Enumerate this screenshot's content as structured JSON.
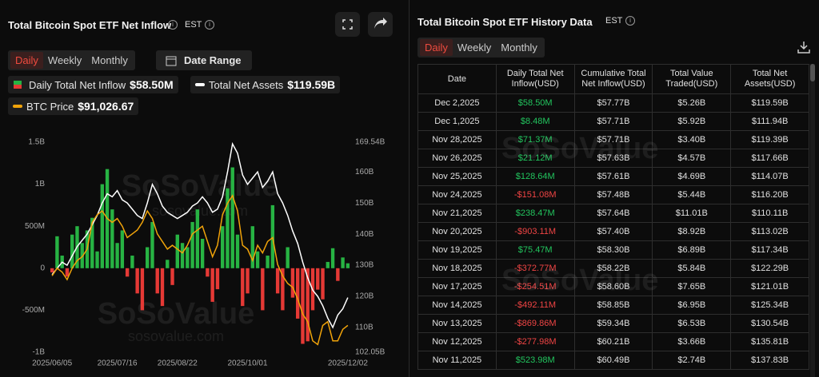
{
  "left_panel": {
    "title": "Total Bitcoin Spot ETF Net Inflow",
    "timezone": "EST",
    "tabs": [
      "Daily",
      "Weekly",
      "Monthly"
    ],
    "active_tab": 0,
    "date_range": "Date Range"
  },
  "watermark": {
    "brand": "SoSoValue",
    "site": "sosovalue.com"
  },
  "chart_data": {
    "type": "combo",
    "categories": [
      "2025/06/05",
      null,
      null,
      null,
      null,
      null,
      null,
      null,
      null,
      null,
      null,
      null,
      null,
      "2025/07/16",
      null,
      null,
      null,
      null,
      null,
      null,
      null,
      null,
      null,
      null,
      null,
      "2025/08/22",
      null,
      null,
      null,
      null,
      null,
      null,
      null,
      null,
      null,
      null,
      null,
      null,
      null,
      "2025/10/01",
      null,
      null,
      null,
      null,
      null,
      null,
      null,
      null,
      null,
      null,
      null,
      null,
      null,
      null,
      null,
      null,
      null,
      null,
      null,
      "2025/12/02"
    ],
    "ylim": [
      -1000,
      1500
    ],
    "yticks": [
      {
        "value": -1000,
        "label": "-1B"
      },
      {
        "value": -500,
        "label": "-500M"
      },
      0,
      {
        "value": 500,
        "label": "500M"
      },
      {
        "value": 1000,
        "label": "1B"
      },
      {
        "value": 1500,
        "label": "1.5B"
      }
    ],
    "y2lim": [
      102.05,
      169.54
    ],
    "y2ticks": [
      {
        "value": 102.05,
        "label": "102.05B"
      },
      {
        "value": 110,
        "label": "110B"
      },
      {
        "value": 120,
        "label": "120B"
      },
      {
        "value": 130,
        "label": "130B"
      },
      {
        "value": 140,
        "label": "140B"
      },
      {
        "value": 150,
        "label": "150B"
      },
      {
        "value": 160,
        "label": "160B"
      },
      {
        "value": 169.54,
        "label": "169.54B"
      }
    ],
    "y3lim": [
      84000,
      139000
    ],
    "grid": false,
    "series": [
      {
        "name": "Daily Total Net Inflow",
        "type": "bar",
        "color": "#27b343",
        "negative_color": "#e53935",
        "latest": "$58.50M",
        "values": [
          -50,
          380,
          150,
          -100,
          400,
          500,
          300,
          450,
          600,
          200,
          1000,
          1180,
          700,
          300,
          450,
          -100,
          150,
          -300,
          -500,
          250,
          550,
          -300,
          -450,
          100,
          -200,
          400,
          300,
          250,
          550,
          700,
          350,
          -100,
          -400,
          -250,
          500,
          950,
          1200,
          400,
          -450,
          -300,
          500,
          200,
          -500,
          150,
          750,
          -300,
          -500,
          250,
          -350,
          -600,
          -900,
          -870,
          -500,
          -255,
          -370,
          75,
          238,
          -151,
          128,
          58.5
        ]
      },
      {
        "name": "Total Net Assets",
        "type": "line",
        "color": "#ffffff",
        "axis": "y2",
        "latest": "$119.59B",
        "values": [
          127,
          129,
          131,
          130,
          133,
          136,
          138,
          140,
          143,
          146,
          150,
          153,
          152,
          154,
          151,
          150,
          148,
          146,
          145,
          150,
          156,
          153,
          149,
          147,
          146,
          145,
          146,
          147,
          149,
          150,
          152,
          150,
          147,
          148,
          152,
          160,
          169,
          166,
          159,
          156,
          158,
          160,
          155,
          157,
          160,
          153,
          150,
          146,
          141,
          137,
          131,
          126,
          122,
          120,
          117,
          113,
          110,
          114,
          116,
          119.59
        ]
      },
      {
        "name": "BTC Price",
        "type": "line",
        "color": "#f0a30a",
        "axis": "y3",
        "latest": "$91,026.67",
        "values": [
          104000,
          106000,
          105000,
          103000,
          106000,
          108000,
          109000,
          111000,
          118000,
          120000,
          121000,
          119000,
          118000,
          119000,
          117000,
          114000,
          115000,
          116000,
          118000,
          121000,
          119000,
          115000,
          113000,
          111000,
          112000,
          111000,
          110000,
          112000,
          115000,
          116000,
          117000,
          113000,
          109000,
          112000,
          120000,
          123000,
          125000,
          121000,
          112000,
          111000,
          108000,
          112000,
          110000,
          113000,
          114000,
          107000,
          104000,
          102000,
          101000,
          98000,
          94000,
          92000,
          87000,
          86000,
          91000,
          92000,
          87000,
          87000,
          90000,
          91026.67
        ]
      }
    ]
  },
  "right_panel": {
    "title": "Total Bitcoin Spot ETF History Data",
    "timezone": "EST",
    "tabs": [
      "Daily",
      "Weekly",
      "Monthly"
    ],
    "active_tab": 0,
    "table": {
      "columns": [
        "Date",
        "Daily Total Net Inflow(USD)",
        "Cumulative Total Net Inflow(USD)",
        "Total Value Traded(USD)",
        "Total Net Assets(USD)"
      ],
      "rows": [
        [
          "Dec 2,2025",
          "$58.50M",
          "$57.77B",
          "$5.26B",
          "$119.59B"
        ],
        [
          "Dec 1,2025",
          "$8.48M",
          "$57.71B",
          "$5.92B",
          "$111.94B"
        ],
        [
          "Nov 28,2025",
          "$71.37M",
          "$57.71B",
          "$3.40B",
          "$119.39B"
        ],
        [
          "Nov 26,2025",
          "$21.12M",
          "$57.63B",
          "$4.57B",
          "$117.66B"
        ],
        [
          "Nov 25,2025",
          "$128.64M",
          "$57.61B",
          "$4.69B",
          "$114.07B"
        ],
        [
          "Nov 24,2025",
          "-$151.08M",
          "$57.48B",
          "$5.44B",
          "$116.20B"
        ],
        [
          "Nov 21,2025",
          "$238.47M",
          "$57.64B",
          "$11.01B",
          "$110.11B"
        ],
        [
          "Nov 20,2025",
          "-$903.11M",
          "$57.40B",
          "$8.92B",
          "$113.02B"
        ],
        [
          "Nov 19,2025",
          "$75.47M",
          "$58.30B",
          "$6.89B",
          "$117.34B"
        ],
        [
          "Nov 18,2025",
          "-$372.77M",
          "$58.22B",
          "$5.84B",
          "$122.29B"
        ],
        [
          "Nov 17,2025",
          "-$254.51M",
          "$58.60B",
          "$7.65B",
          "$121.01B"
        ],
        [
          "Nov 14,2025",
          "-$492.11M",
          "$58.85B",
          "$6.95B",
          "$125.34B"
        ],
        [
          "Nov 13,2025",
          "-$869.86M",
          "$59.34B",
          "$6.53B",
          "$130.54B"
        ],
        [
          "Nov 12,2025",
          "-$277.98M",
          "$60.21B",
          "$3.66B",
          "$135.81B"
        ],
        [
          "Nov 11,2025",
          "$523.98M",
          "$60.49B",
          "$2.74B",
          "$137.83B"
        ]
      ]
    }
  }
}
